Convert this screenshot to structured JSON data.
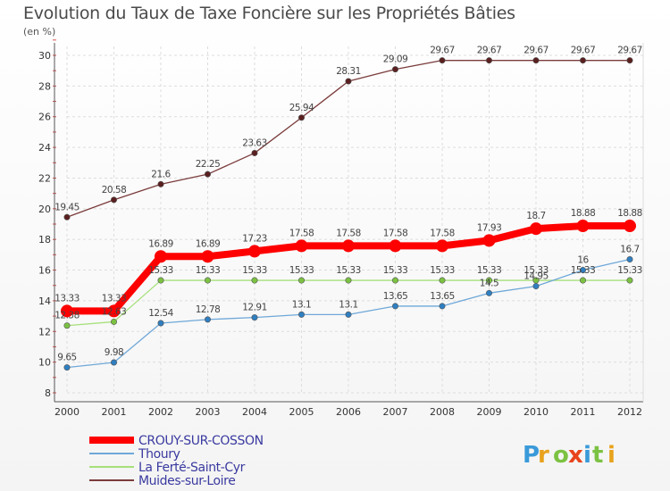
{
  "chart_data": {
    "type": "line",
    "title": "Evolution du Taux de Taxe Foncière sur les Propriétés Bâties",
    "ylabel": "(en %)",
    "xlabel": "",
    "ylim": [
      8,
      30
    ],
    "yticks": [
      8,
      10,
      12,
      14,
      16,
      18,
      20,
      22,
      24,
      26,
      28,
      30
    ],
    "categories": [
      "2000",
      "2001",
      "2002",
      "2003",
      "2004",
      "2005",
      "2006",
      "2007",
      "2008",
      "2009",
      "2010",
      "2011",
      "2012"
    ],
    "series": [
      {
        "name": "CROUY-SUR-COSSON",
        "color": "#ff0000",
        "values": [
          13.33,
          13.33,
          16.89,
          16.89,
          17.23,
          17.58,
          17.58,
          17.58,
          17.58,
          17.93,
          18.7,
          18.88,
          18.88
        ],
        "labels": [
          "13.33",
          "13.33",
          "16.89",
          "16.89",
          "17.23",
          "17.58",
          "17.58",
          "17.58",
          "17.58",
          "17.93",
          "18.7",
          "18.88",
          "18.88"
        ]
      },
      {
        "name": "Thoury",
        "color": "#6fa8d8",
        "values": [
          9.65,
          9.98,
          12.54,
          12.78,
          12.91,
          13.1,
          13.1,
          13.65,
          13.65,
          14.5,
          14.95,
          16,
          16.7
        ],
        "labels": [
          "9.65",
          "9.98",
          "12.54",
          "12.78",
          "12.91",
          "13.1",
          "13.1",
          "13.65",
          "13.65",
          "14.5",
          "14.95",
          "16",
          "16.7"
        ]
      },
      {
        "name": "La Ferté-Saint-Cyr",
        "color": "#a6e07a",
        "values": [
          12.38,
          12.63,
          15.33,
          15.33,
          15.33,
          15.33,
          15.33,
          15.33,
          15.33,
          15.33,
          15.33,
          15.33,
          15.33
        ],
        "labels": [
          "12.38",
          "12.63",
          "15.33",
          "15.33",
          "15.33",
          "15.33",
          "15.33",
          "15.33",
          "15.33",
          "15.33",
          "15.33",
          "15.33",
          "15.33"
        ]
      },
      {
        "name": "Muides-sur-Loire",
        "color": "#7b3b3b",
        "values": [
          19.45,
          20.58,
          21.6,
          22.25,
          23.63,
          25.94,
          28.31,
          29.09,
          29.67,
          29.67,
          29.67,
          29.67,
          29.67
        ],
        "labels": [
          "19.45",
          "20.58",
          "21.6",
          "22.25",
          "23.63",
          "25.94",
          "28.31",
          "29.09",
          "29.67",
          "29.67",
          "29.67",
          "29.67",
          "29.67"
        ]
      }
    ]
  },
  "logo": {
    "text": "Proxiti",
    "colors": [
      "#3a9ad9",
      "#e8a21c",
      "#7cc242",
      "#e8431c",
      "#3a9ad9",
      "#7cc242",
      "#e8a21c"
    ]
  }
}
